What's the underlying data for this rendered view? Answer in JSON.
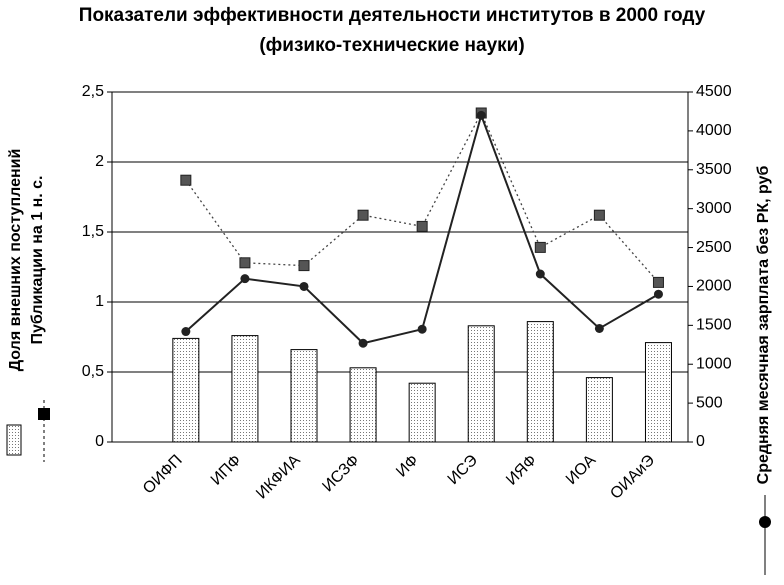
{
  "chart_data": {
    "type": "bar-line",
    "title": "Показатели эффективности деятельности институтов в 2000 году",
    "subtitle": "(физико-технические науки)",
    "y_label": [
      "Доля внешних поступлений",
      "Публикации на 1 н. с."
    ],
    "y2_label": "Средняя месячная зарплата без РК, руб",
    "categories": [
      "ОИФП",
      "ИПФ",
      "ИКФИА",
      "ИСЗФ",
      "ИФ",
      "ИСЭ",
      "ИЯФ",
      "ИОА",
      "ОИАиЭ"
    ],
    "series": [
      {
        "type": "bar",
        "color": "#e6e6e6",
        "values": [
          0.74,
          0.76,
          0.66,
          0.53,
          0.42,
          0.83,
          0.86,
          0.46,
          0.71
        ]
      },
      {
        "type": "line",
        "marker": "square",
        "dashed": true,
        "color": "#444444",
        "values": [
          1.87,
          1.28,
          1.26,
          1.62,
          1.54,
          2.35,
          1.39,
          1.62,
          1.14
        ]
      },
      {
        "type": "line",
        "marker": "circle",
        "dashed": false,
        "color": "#222222",
        "axis": "y2",
        "values": [
          1420,
          2100,
          2000,
          1270,
          1450,
          4200,
          2160,
          1460,
          1900
        ]
      }
    ],
    "ylim": [
      0,
      2.5
    ],
    "yticks": [
      0,
      {
        "value": 0.5,
        "label": "0,5"
      },
      1,
      {
        "value": 1.5,
        "label": "1,5"
      },
      2,
      {
        "value": 2.5,
        "label": "2,5"
      }
    ],
    "y2lim": [
      0,
      4500
    ],
    "y2ticks": [
      0,
      500,
      1000,
      1500,
      2000,
      2500,
      3000,
      3500,
      4000,
      4500
    ],
    "grid": true
  }
}
